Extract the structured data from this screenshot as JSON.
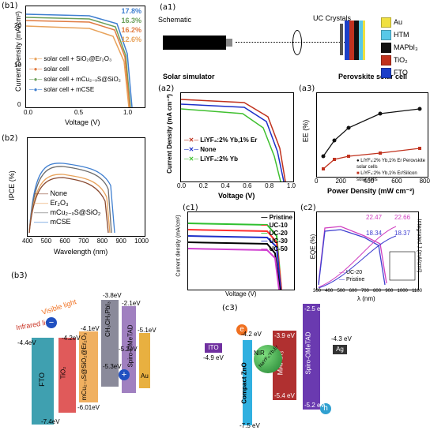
{
  "b1": {
    "tag": "(b1)",
    "ylabel": "Current Density (mA/cm²)",
    "xlabel": "Voltage (V)",
    "xticks": [
      "0.0",
      "0.5",
      "1.0"
    ],
    "yticks": [
      "0",
      "10",
      "20"
    ],
    "efficiencies": [
      "17.8%",
      "16.3%",
      "16.2%",
      "12.6%"
    ],
    "legend": [
      "solar cell + SiO₂@Er₂O₃",
      "solar cell",
      "solar cell + mCu₂₋ₓS@SiO₂",
      "solar cell + mCSE"
    ],
    "colors": [
      "#e8a25a",
      "#e07a40",
      "#6b9f5a",
      "#3f7fd0"
    ]
  },
  "b2": {
    "tag": "(b2)",
    "ylabel": "IPCE (%)",
    "xlabel": "Wavelength (nm)",
    "xticks": [
      "400",
      "500",
      "600",
      "700",
      "800",
      "900",
      "1000"
    ],
    "legend": [
      "None",
      "Er₂O₃",
      "mCu₂₋ₓS@SiO₂",
      "mCSE"
    ],
    "colors": [
      "#8a4a30",
      "#e8a25a",
      "#6b6b6b",
      "#3f7fd0"
    ]
  },
  "b3": {
    "tag": "(b3)",
    "visible_light": "Visible light",
    "infrared_light": "Infrared light",
    "layers": [
      "FTO",
      "TiO₂",
      "mCu₂₋ₓS@SiO₂@Er₂O₃",
      "CH₃CH₃PbI₃",
      "Spiro-OMeTAD",
      "Au"
    ],
    "levels": [
      "-4.4eV",
      "-4.2eV",
      "-4.1eV",
      "-3.8eV",
      "-2.1eV",
      "-5.1eV",
      "-5.2eV",
      "-5.3eV",
      "-6.01eV",
      "-7.4eV"
    ],
    "carriers": [
      "−",
      "+"
    ]
  },
  "a1": {
    "tag": "(a1)",
    "schematic": "Schematic",
    "uc_crystals": "UC Crystals",
    "solar_simulator": "Solar simulator",
    "perovskite": "Perovskite solar cell",
    "legend": [
      "Au",
      "HTM",
      "MAPbI₃",
      "TiO₂",
      "FTO"
    ],
    "colors": [
      "#f0e040",
      "#58c8e8",
      "#111111",
      "#c0321e",
      "#1c3fc8"
    ]
  },
  "a2": {
    "tag": "(a2)",
    "ylabel": "Current Density (mA cm⁻²)",
    "xlabel": "Voltage (V)",
    "xticks": [
      "0.0",
      "0.2",
      "0.4",
      "0.6",
      "0.8",
      "1.0"
    ],
    "yticks": [
      "0",
      "5",
      "10",
      "15",
      "20"
    ],
    "legend": [
      "LiYF₄:2% Yb,1% Er",
      "None",
      "LiYF₄:2% Yb"
    ],
    "colors": [
      "#c0321e",
      "#1c2fc8",
      "#40c030"
    ]
  },
  "a3": {
    "tag": "(a3)",
    "ylabel": "EE (%)",
    "xlabel": "Power Density (mW cm⁻²)",
    "xticks": [
      "0",
      "200",
      "400",
      "600",
      "800"
    ],
    "yticks": [
      "0",
      "2",
      "4",
      "6",
      "8",
      "10"
    ],
    "legend": [
      "LiYF₄:2% Yb,1% Er Perovskite solar cells",
      "LiYF₄:2% Yb,1% Er/Silicon solar cells"
    ],
    "colors": [
      "#111111",
      "#c0321e"
    ]
  },
  "c1": {
    "tag": "(c1)",
    "ylabel": "Current density (mA/cm²)",
    "xlabel": "Voltage (V)",
    "legend": [
      "Pristine",
      "UC-10",
      "UC-20",
      "UC-30",
      "UC-50"
    ],
    "colors": [
      "#000000",
      "#ff3030",
      "#30c030",
      "#1c2fc8",
      "#d040d0"
    ]
  },
  "c2": {
    "tag": "(c2)",
    "ylabel_left": "EQE (%)",
    "ylabel_right": "Integrated J (mA/cm²)",
    "xlabel": "λ (nm)",
    "xticks": [
      "300",
      "400",
      "500",
      "600",
      "700",
      "800",
      "900",
      "1000",
      "1100"
    ],
    "values": [
      "22.47",
      "22.66",
      "18.34",
      "18.37"
    ],
    "legend": [
      "UC-20",
      "Pristine"
    ],
    "colors": [
      "#d040c0",
      "#3f3fd0"
    ]
  },
  "c3": {
    "tag": "(c3)",
    "e": "e",
    "h": "h",
    "nir": "NIR",
    "layers": [
      "ITO",
      "Compact ZnO",
      "MAPbI₃",
      "Spiro-OMeTAD",
      "Ag",
      "NaYF₄:Yb,Er"
    ],
    "levels": [
      "-4.2 eV",
      "-4.9 eV",
      "-7.5 eV",
      "-3.9 eV",
      "-5.4 eV",
      "-2.5 eV",
      "-5.2 eV",
      "-4.3 eV"
    ]
  }
}
